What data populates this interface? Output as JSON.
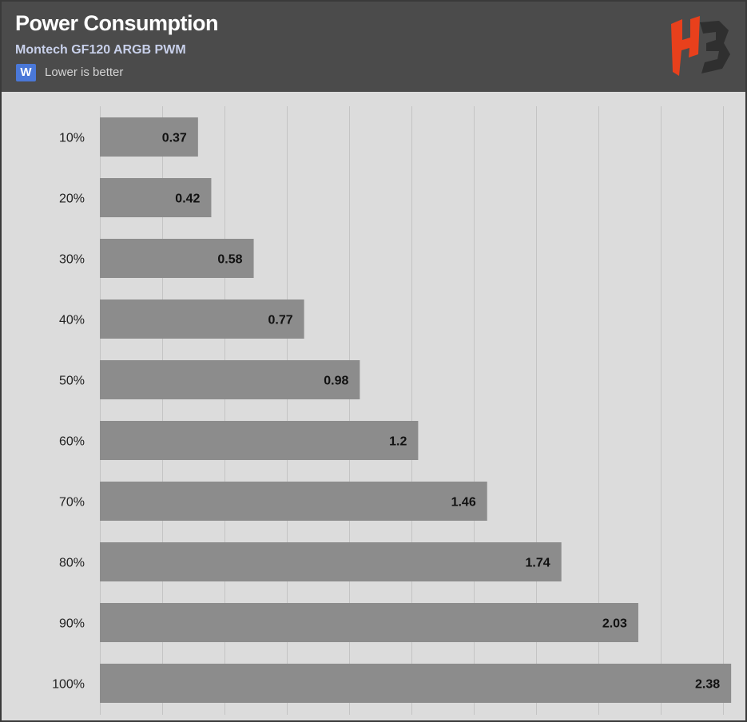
{
  "header": {
    "title": "Power Consumption",
    "subtitle": "Montech GF120 ARGB PWM",
    "unit_badge": "W",
    "note": "Lower is better",
    "logo_text": "HB"
  },
  "colors": {
    "header_bg": "#4b4b4b",
    "plot_bg": "#dcdcdc",
    "bar": "#8c8c8c",
    "badge": "#4a78d8",
    "logo_primary": "#e8401c",
    "logo_secondary": "#2f2f2f"
  },
  "chart_data": {
    "type": "bar",
    "orientation": "horizontal",
    "categories": [
      "10%",
      "20%",
      "30%",
      "40%",
      "50%",
      "60%",
      "70%",
      "80%",
      "90%",
      "100%"
    ],
    "values": [
      0.37,
      0.42,
      0.58,
      0.77,
      0.98,
      1.2,
      1.46,
      1.74,
      2.03,
      2.38
    ],
    "value_labels": [
      "0.37",
      "0.42",
      "0.58",
      "0.77",
      "0.98",
      "1.2",
      "1.46",
      "1.74",
      "2.03",
      "2.38"
    ],
    "title": "Power Consumption",
    "subtitle": "Montech GF120 ARGB PWM",
    "unit": "W",
    "xlim": [
      0,
      2.5
    ],
    "grid": true,
    "gridline_step": 0.235,
    "legend": "none"
  }
}
